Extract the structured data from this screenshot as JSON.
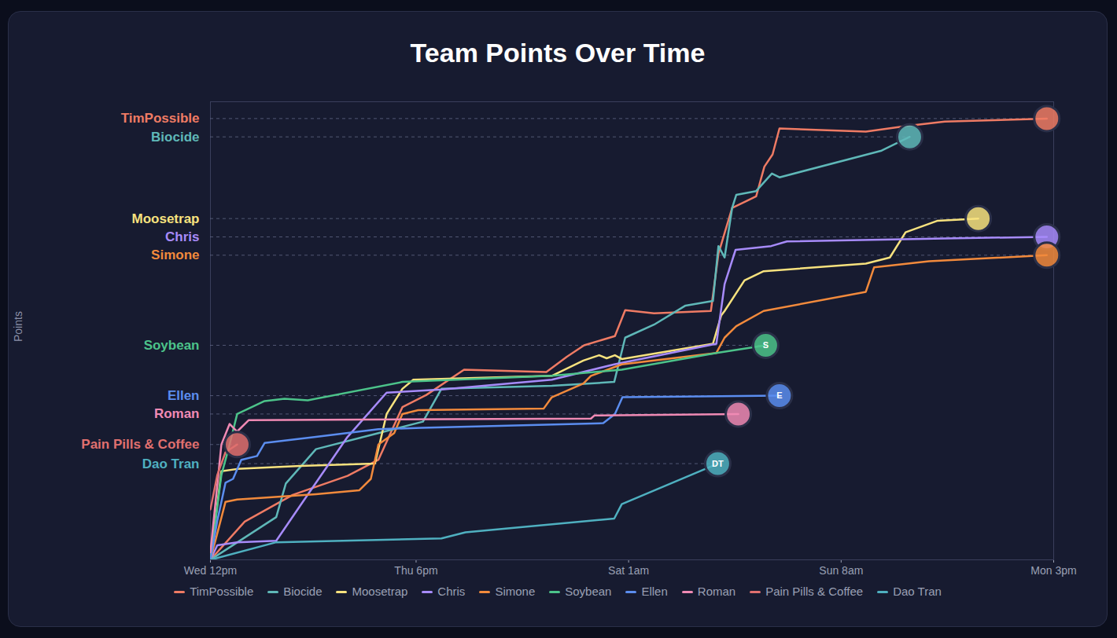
{
  "chart_data": {
    "type": "line",
    "title": "Team Points Over Time",
    "y_label": "Points",
    "xlim": [
      0,
      123
    ],
    "xticks": [
      {
        "value": 0,
        "label": "Wed 12pm"
      },
      {
        "value": 30,
        "label": "Thu 6pm"
      },
      {
        "value": 61,
        "label": "Sat 1am"
      },
      {
        "value": 92,
        "label": "Sun 8am"
      },
      {
        "value": 123,
        "label": "Mon 3pm"
      }
    ],
    "ylim": [
      0,
      600
    ],
    "yticks": [
      {
        "value": 578,
        "label": "TimPossible"
      },
      {
        "value": 554,
        "label": "Biocide"
      },
      {
        "value": 447,
        "label": "Moosetrap"
      },
      {
        "value": 423,
        "label": "Chris"
      },
      {
        "value": 399,
        "label": "Simone"
      },
      {
        "value": 281,
        "label": "Soybean"
      },
      {
        "value": 215,
        "label": "Ellen"
      },
      {
        "value": 191,
        "label": "Roman"
      },
      {
        "value": 151,
        "label": "Pain Pills & Coffee"
      },
      {
        "value": 126,
        "label": "Dao Tran"
      }
    ],
    "grid": true,
    "legend": "bottom",
    "annotations": [
      {
        "series": "Soybean",
        "text": "S"
      },
      {
        "series": "Ellen",
        "text": "E"
      },
      {
        "series": "Dao Tran",
        "text": "DT"
      }
    ],
    "series": [
      {
        "name": "TimPossible",
        "color": "#ef7b64",
        "x": [
          0,
          5,
          12,
          20,
          24.5,
          28,
          31.5,
          37,
          49,
          52,
          54.5,
          59,
          60.5,
          64.7,
          73,
          74.1,
          76.1,
          79.6,
          80.8,
          82,
          83,
          95.6,
          101.4,
          107.1,
          122
        ],
        "values": [
          0,
          50,
          85,
          110,
          131,
          200,
          216,
          249,
          246,
          266,
          281,
          293,
          327,
          323,
          326,
          401,
          461,
          476,
          515,
          531,
          565,
          561,
          568,
          574,
          578
        ]
      },
      {
        "name": "Biocide",
        "color": "#5fb8b8",
        "x": [
          0,
          9.6,
          11,
          15.4,
          24.5,
          31,
          33.7,
          49.8,
          58.9,
          60.5,
          64.7,
          69.3,
          73.3,
          74.1,
          75,
          76.1,
          76.7,
          79.6,
          81.9,
          83,
          97.9,
          102
        ],
        "values": [
          0,
          56,
          100,
          145,
          166,
          181,
          224,
          228,
          233,
          291,
          308,
          333,
          339,
          411,
          396,
          461,
          478,
          483,
          506,
          501,
          536,
          554
        ]
      },
      {
        "name": "Moosetrap",
        "color": "#f7e27e",
        "x": [
          0,
          1.6,
          3.9,
          13.1,
          24,
          25.7,
          28,
          29.6,
          49.8,
          54.4,
          56.7,
          57.8,
          59,
          60,
          73.3,
          74.5,
          75,
          77.9,
          80.7,
          95.6,
          99.1,
          101.4,
          106,
          112
        ],
        "values": [
          0,
          116,
          119,
          123,
          126,
          191,
          224,
          236,
          241,
          261,
          268,
          264,
          268,
          263,
          283,
          320,
          326,
          366,
          378,
          388,
          396,
          429,
          444,
          447
        ]
      },
      {
        "name": "Chris",
        "color": "#a78bfa",
        "x": [
          0,
          1,
          3.9,
          9.6,
          13.1,
          20,
          25.7,
          33.7,
          49.8,
          58.9,
          73.8,
          75,
          76.6,
          81.8,
          84.1,
          107.1,
          122
        ],
        "values": [
          0,
          19,
          23,
          25,
          71,
          161,
          219,
          223,
          236,
          256,
          283,
          361,
          406,
          411,
          417,
          421,
          423
        ]
      },
      {
        "name": "Simone",
        "color": "#f28a3c",
        "x": [
          0,
          2.2,
          3.9,
          15.4,
          21.7,
          23.4,
          24.5,
          26.8,
          28,
          30.3,
          48.6,
          49.8,
          54.4,
          55.5,
          60,
          73.8,
          75,
          76.7,
          80.7,
          95.6,
          96.8,
          104.8,
          122
        ],
        "values": [
          0,
          76,
          79,
          86,
          91,
          106,
          151,
          166,
          191,
          196,
          198,
          213,
          231,
          241,
          256,
          271,
          291,
          306,
          326,
          351,
          383,
          391,
          399
        ]
      },
      {
        "name": "Soybean",
        "color": "#4cc38a",
        "x": [
          0,
          1.6,
          2.8,
          3.9,
          7.9,
          10.8,
          14.2,
          28,
          49.8,
          60,
          73.8,
          81
        ],
        "values": [
          0,
          111,
          151,
          191,
          208,
          211,
          209,
          233,
          241,
          249,
          271,
          281
        ]
      },
      {
        "name": "Ellen",
        "color": "#5b8def",
        "x": [
          0,
          1,
          2.2,
          3.3,
          4.5,
          6.8,
          7.9,
          15.4,
          24.5,
          30.8,
          57.3,
          59,
          60.1,
          83
        ],
        "values": [
          0,
          51,
          101,
          106,
          131,
          136,
          153,
          161,
          171,
          173,
          179,
          191,
          213,
          215
        ]
      },
      {
        "name": "Roman",
        "color": "#f08ab4",
        "x": [
          0,
          1.6,
          2.8,
          3.9,
          5.6,
          55.5,
          56,
          77
        ],
        "values": [
          10,
          151,
          178,
          168,
          183,
          185,
          189,
          191
        ]
      },
      {
        "name": "Pain Pills & Coffee",
        "color": "#e0706f",
        "x": [
          0,
          1,
          2.2,
          3.9
        ],
        "values": [
          66,
          111,
          141,
          151
        ]
      },
      {
        "name": "Dao Tran",
        "color": "#4fb0c0",
        "x": [
          0,
          9.6,
          33.7,
          37.2,
          58.9,
          60,
          74
        ],
        "values": [
          0,
          23,
          28,
          36,
          54,
          73,
          126
        ]
      }
    ]
  }
}
